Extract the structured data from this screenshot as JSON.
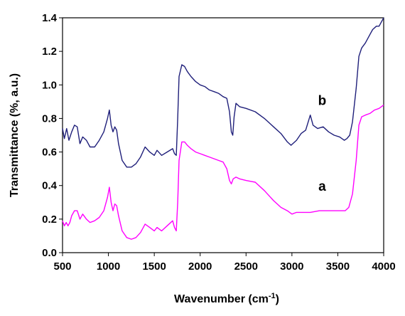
{
  "chart_data": {
    "type": "line",
    "title": "",
    "xlabel": "Wavenumber (cm",
    "xlabel_sup": "-1",
    "xlabel_close": ")",
    "ylabel": "Transmittance (%, a.u.)",
    "xlim": [
      500,
      4000
    ],
    "ylim": [
      0.0,
      1.4
    ],
    "x_ticks": [
      500,
      1000,
      1500,
      2000,
      2500,
      3000,
      3500,
      4000
    ],
    "y_ticks": [
      "0.0",
      "0.2",
      "0.4",
      "0.6",
      "0.8",
      "1.0",
      "1.2",
      "1.4"
    ],
    "grid": false,
    "legend": "none",
    "annotations": [
      {
        "text": "a",
        "x": 3330,
        "y": 0.37
      },
      {
        "text": "b",
        "x": 3330,
        "y": 0.88
      }
    ],
    "series": [
      {
        "label": "a",
        "color": "#ff00ff",
        "points": [
          [
            500,
            0.19
          ],
          [
            520,
            0.16
          ],
          [
            540,
            0.18
          ],
          [
            560,
            0.16
          ],
          [
            580,
            0.18
          ],
          [
            600,
            0.22
          ],
          [
            630,
            0.25
          ],
          [
            660,
            0.25
          ],
          [
            690,
            0.2
          ],
          [
            720,
            0.23
          ],
          [
            760,
            0.2
          ],
          [
            800,
            0.18
          ],
          [
            850,
            0.19
          ],
          [
            900,
            0.21
          ],
          [
            950,
            0.25
          ],
          [
            990,
            0.33
          ],
          [
            1010,
            0.39
          ],
          [
            1030,
            0.3
          ],
          [
            1050,
            0.25
          ],
          [
            1070,
            0.29
          ],
          [
            1090,
            0.28
          ],
          [
            1110,
            0.22
          ],
          [
            1150,
            0.13
          ],
          [
            1200,
            0.09
          ],
          [
            1250,
            0.08
          ],
          [
            1300,
            0.09
          ],
          [
            1350,
            0.12
          ],
          [
            1400,
            0.17
          ],
          [
            1450,
            0.15
          ],
          [
            1500,
            0.13
          ],
          [
            1530,
            0.15
          ],
          [
            1580,
            0.13
          ],
          [
            1640,
            0.16
          ],
          [
            1700,
            0.19
          ],
          [
            1720,
            0.15
          ],
          [
            1740,
            0.13
          ],
          [
            1755,
            0.3
          ],
          [
            1770,
            0.55
          ],
          [
            1800,
            0.66
          ],
          [
            1830,
            0.66
          ],
          [
            1860,
            0.64
          ],
          [
            1900,
            0.62
          ],
          [
            1950,
            0.6
          ],
          [
            2000,
            0.59
          ],
          [
            2050,
            0.58
          ],
          [
            2100,
            0.57
          ],
          [
            2150,
            0.56
          ],
          [
            2200,
            0.55
          ],
          [
            2250,
            0.54
          ],
          [
            2290,
            0.5
          ],
          [
            2320,
            0.43
          ],
          [
            2340,
            0.41
          ],
          [
            2360,
            0.44
          ],
          [
            2390,
            0.45
          ],
          [
            2430,
            0.44
          ],
          [
            2500,
            0.43
          ],
          [
            2600,
            0.42
          ],
          [
            2700,
            0.37
          ],
          [
            2800,
            0.31
          ],
          [
            2880,
            0.27
          ],
          [
            2950,
            0.25
          ],
          [
            3000,
            0.23
          ],
          [
            3050,
            0.24
          ],
          [
            3100,
            0.24
          ],
          [
            3200,
            0.24
          ],
          [
            3300,
            0.25
          ],
          [
            3400,
            0.25
          ],
          [
            3500,
            0.25
          ],
          [
            3580,
            0.25
          ],
          [
            3620,
            0.27
          ],
          [
            3660,
            0.35
          ],
          [
            3700,
            0.55
          ],
          [
            3730,
            0.76
          ],
          [
            3760,
            0.81
          ],
          [
            3800,
            0.82
          ],
          [
            3850,
            0.83
          ],
          [
            3900,
            0.85
          ],
          [
            3950,
            0.86
          ],
          [
            4000,
            0.88
          ]
        ]
      },
      {
        "label": "b",
        "color": "#1f1f7a",
        "points": [
          [
            500,
            0.74
          ],
          [
            520,
            0.68
          ],
          [
            545,
            0.74
          ],
          [
            570,
            0.67
          ],
          [
            600,
            0.72
          ],
          [
            630,
            0.76
          ],
          [
            660,
            0.75
          ],
          [
            690,
            0.65
          ],
          [
            720,
            0.69
          ],
          [
            760,
            0.67
          ],
          [
            800,
            0.63
          ],
          [
            850,
            0.63
          ],
          [
            900,
            0.67
          ],
          [
            950,
            0.72
          ],
          [
            990,
            0.8
          ],
          [
            1010,
            0.85
          ],
          [
            1030,
            0.76
          ],
          [
            1050,
            0.72
          ],
          [
            1070,
            0.75
          ],
          [
            1090,
            0.73
          ],
          [
            1110,
            0.65
          ],
          [
            1150,
            0.55
          ],
          [
            1200,
            0.51
          ],
          [
            1250,
            0.51
          ],
          [
            1300,
            0.53
          ],
          [
            1350,
            0.57
          ],
          [
            1400,
            0.63
          ],
          [
            1450,
            0.6
          ],
          [
            1500,
            0.58
          ],
          [
            1530,
            0.61
          ],
          [
            1580,
            0.58
          ],
          [
            1640,
            0.6
          ],
          [
            1700,
            0.62
          ],
          [
            1720,
            0.59
          ],
          [
            1740,
            0.58
          ],
          [
            1755,
            0.8
          ],
          [
            1770,
            1.05
          ],
          [
            1800,
            1.12
          ],
          [
            1830,
            1.11
          ],
          [
            1860,
            1.08
          ],
          [
            1900,
            1.05
          ],
          [
            1950,
            1.02
          ],
          [
            2000,
            1.0
          ],
          [
            2050,
            0.99
          ],
          [
            2100,
            0.97
          ],
          [
            2150,
            0.96
          ],
          [
            2200,
            0.95
          ],
          [
            2250,
            0.93
          ],
          [
            2290,
            0.92
          ],
          [
            2320,
            0.84
          ],
          [
            2340,
            0.72
          ],
          [
            2355,
            0.7
          ],
          [
            2370,
            0.81
          ],
          [
            2390,
            0.89
          ],
          [
            2430,
            0.87
          ],
          [
            2500,
            0.86
          ],
          [
            2600,
            0.84
          ],
          [
            2700,
            0.8
          ],
          [
            2800,
            0.75
          ],
          [
            2880,
            0.71
          ],
          [
            2950,
            0.66
          ],
          [
            2990,
            0.64
          ],
          [
            3050,
            0.67
          ],
          [
            3100,
            0.71
          ],
          [
            3150,
            0.73
          ],
          [
            3200,
            0.82
          ],
          [
            3230,
            0.76
          ],
          [
            3280,
            0.74
          ],
          [
            3340,
            0.75
          ],
          [
            3400,
            0.72
          ],
          [
            3460,
            0.7
          ],
          [
            3520,
            0.69
          ],
          [
            3570,
            0.67
          ],
          [
            3600,
            0.68
          ],
          [
            3630,
            0.7
          ],
          [
            3660,
            0.78
          ],
          [
            3700,
            0.98
          ],
          [
            3730,
            1.17
          ],
          [
            3760,
            1.22
          ],
          [
            3800,
            1.25
          ],
          [
            3850,
            1.3
          ],
          [
            3880,
            1.33
          ],
          [
            3920,
            1.35
          ],
          [
            3950,
            1.35
          ],
          [
            3980,
            1.38
          ],
          [
            4000,
            1.4
          ]
        ]
      }
    ]
  }
}
